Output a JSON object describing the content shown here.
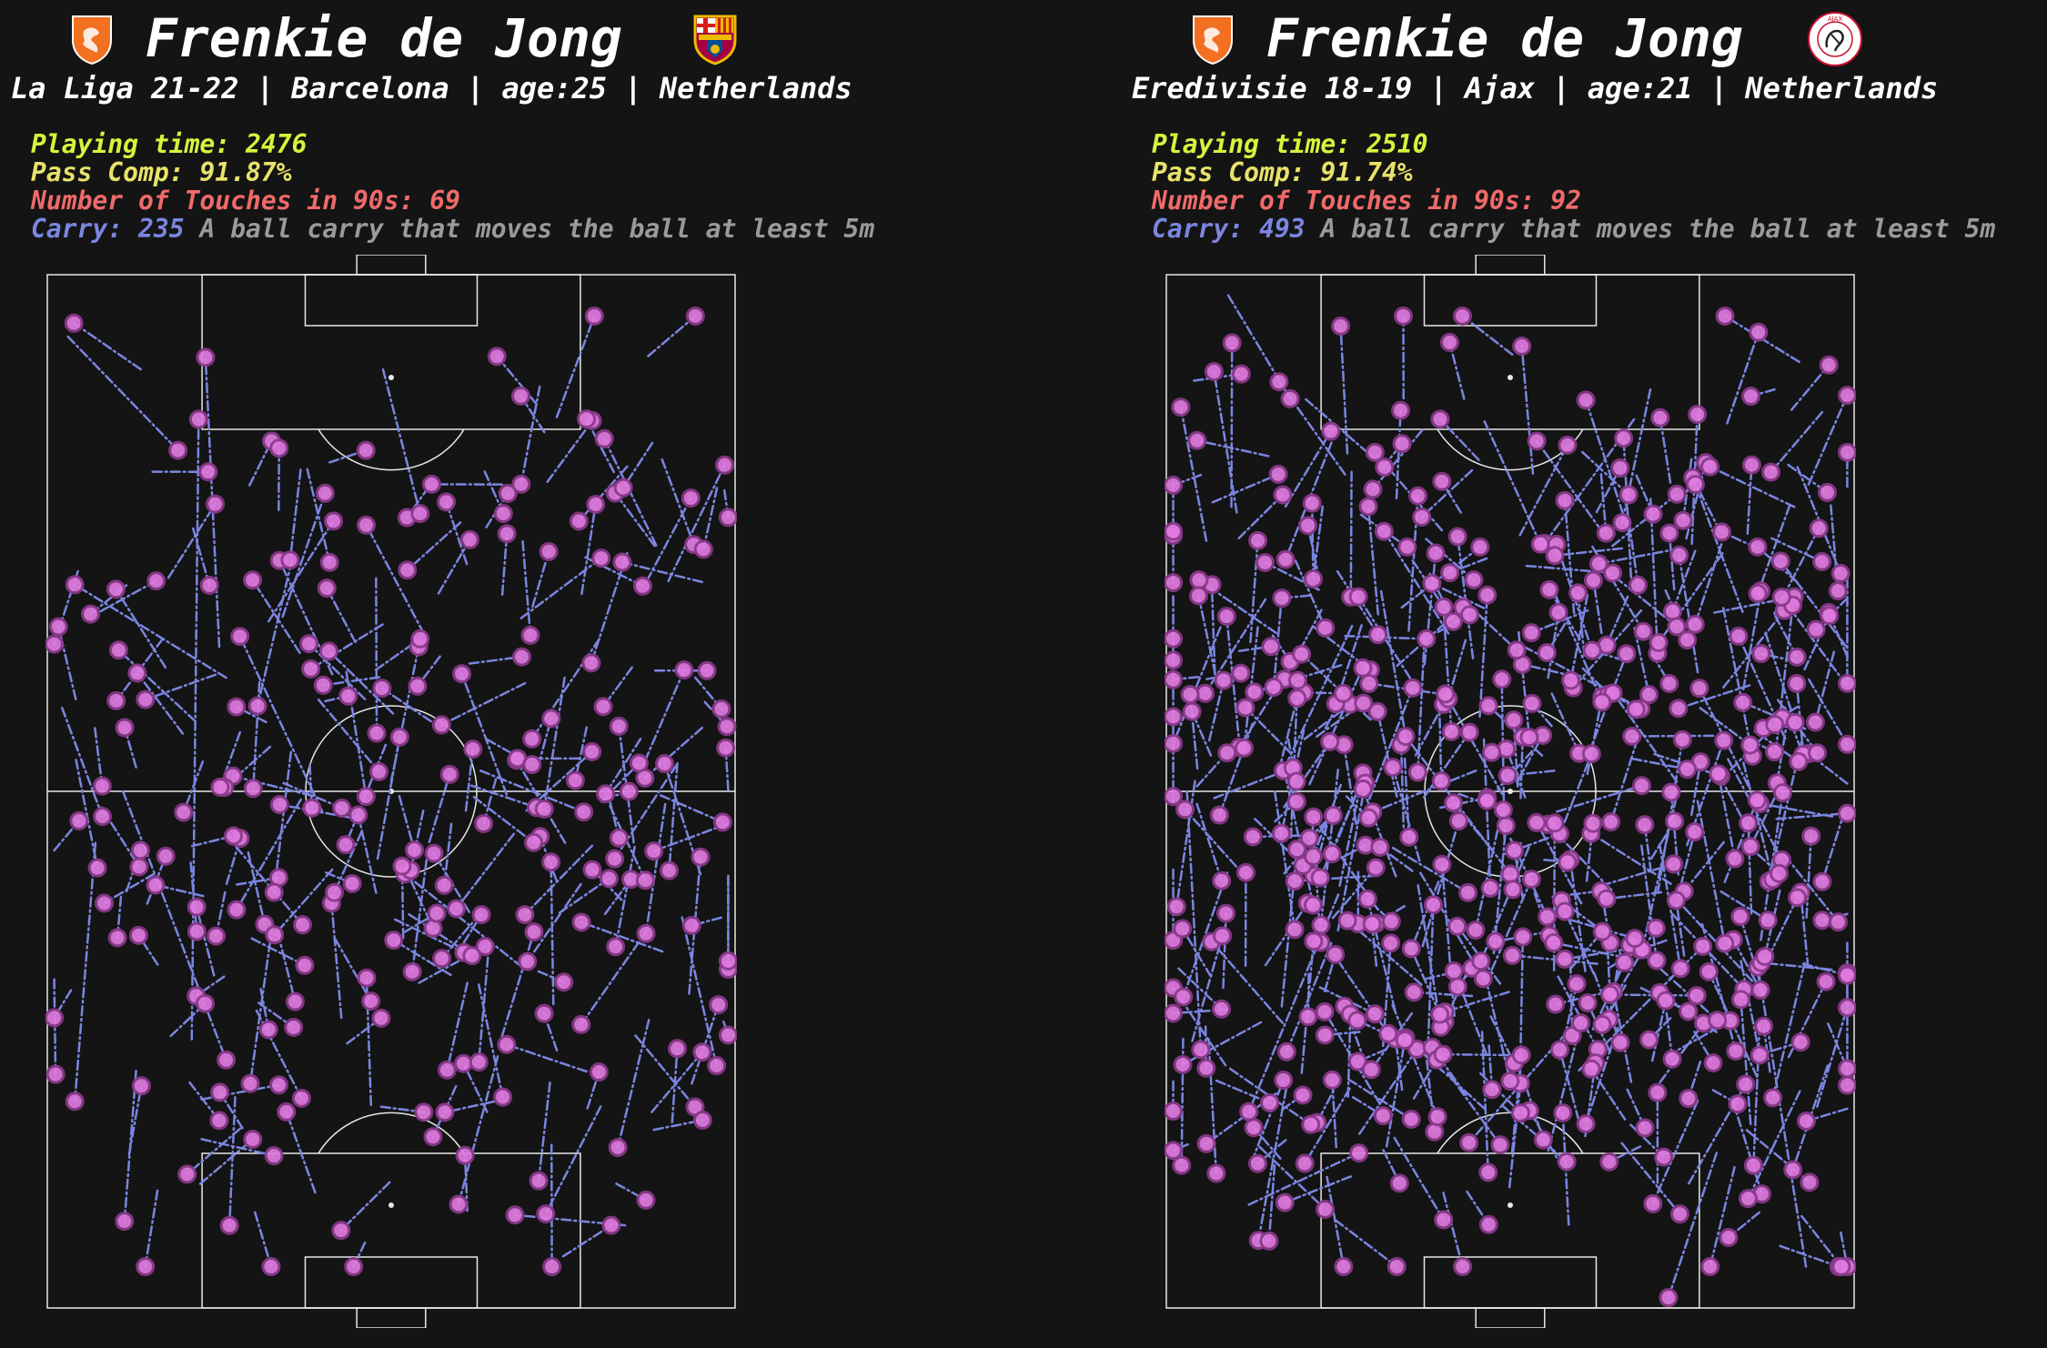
{
  "colors": {
    "background": "#141414",
    "pitch_lines": "#e8e8e8",
    "playing_time": "#d4f53c",
    "pass_comp": "#e8e36a",
    "touches": "#f06a6a",
    "carry": "#7b86e0",
    "carry_end": "#e07be0"
  },
  "panels": [
    {
      "player": "Frenkie de Jong",
      "subtitle": "La Liga 21-22 | Barcelona | age:25 | Netherlands",
      "playing_time": "Playing time: 2476",
      "pass_comp": "Pass Comp: 91.87%",
      "touches": "Number of Touches in 90s: 69",
      "carry_label": "Carry:",
      "carry_value": "235",
      "carry_desc": "A ball carry that moves the ball at least 5m",
      "left_crest_icon": "netherlands-lion-crest-icon",
      "right_crest_icon": "barcelona-crest-icon"
    },
    {
      "player": "Frenkie de Jong",
      "subtitle": "Eredivisie 18-19 | Ajax | age:21 | Netherlands",
      "playing_time": "Playing time: 2510",
      "pass_comp": "Pass Comp: 91.74%",
      "touches": "Number of Touches in 90s: 92",
      "carry_label": "Carry:",
      "carry_value": "493",
      "carry_desc": "A ball carry that moves the ball at least 5m",
      "left_crest_icon": "netherlands-lion-crest-icon",
      "right_crest_icon": "ajax-crest-icon"
    }
  ],
  "chart_data": [
    {
      "type": "scatter",
      "title": "Frenkie de Jong",
      "subtitle": "La Liga 21-22 | Barcelona | age:25 | Netherlands",
      "description_series": "Ball carries (start to end); end points marked",
      "carry_count": 235,
      "pitch": {
        "length": 120,
        "width": 80,
        "orientation": "vertical",
        "attack_direction": "up"
      },
      "samples": [
        [
          21,
          74,
          22,
          14
        ],
        [
          84,
          92,
          68,
          91
        ],
        [
          3,
          6,
          19,
          17
        ],
        [
          26,
          39,
          4,
          30
        ],
        [
          25,
          36,
          23,
          8
        ],
        [
          63,
          48,
          78,
          52
        ],
        [
          69,
          67,
          52,
          58
        ],
        [
          40,
          52,
          28,
          35
        ],
        [
          11,
          50,
          26,
          76
        ],
        [
          75,
          95,
          82,
          92
        ],
        [
          7,
          55,
          4,
          80
        ],
        [
          50,
          49,
          54,
          36
        ],
        [
          61,
          28,
          58,
          22
        ]
      ]
    },
    {
      "type": "scatter",
      "title": "Frenkie de Jong",
      "subtitle": "Eredivisie 18-19 | Ajax | age:21 | Netherlands",
      "description_series": "Ball carries (start to end); end points marked",
      "carry_count": 493,
      "pitch": {
        "length": 120,
        "width": 80,
        "orientation": "vertical",
        "attack_direction": "up"
      },
      "samples": [
        [
          12,
          90,
          28,
          85
        ],
        [
          93,
          96,
          86,
          67
        ],
        [
          3,
          50,
          5,
          75
        ],
        [
          25,
          60,
          12,
          81
        ],
        [
          68,
          14,
          55,
          26
        ],
        [
          45,
          48,
          30,
          52
        ],
        [
          34,
          44,
          50,
          58
        ],
        [
          60,
          72,
          44,
          84
        ],
        [
          80,
          85,
          73,
          99
        ],
        [
          9,
          2,
          18,
          12
        ],
        [
          60,
          77,
          78,
          65
        ],
        [
          27,
          34,
          17,
          48
        ],
        [
          52,
          36,
          69,
          42
        ]
      ]
    }
  ]
}
